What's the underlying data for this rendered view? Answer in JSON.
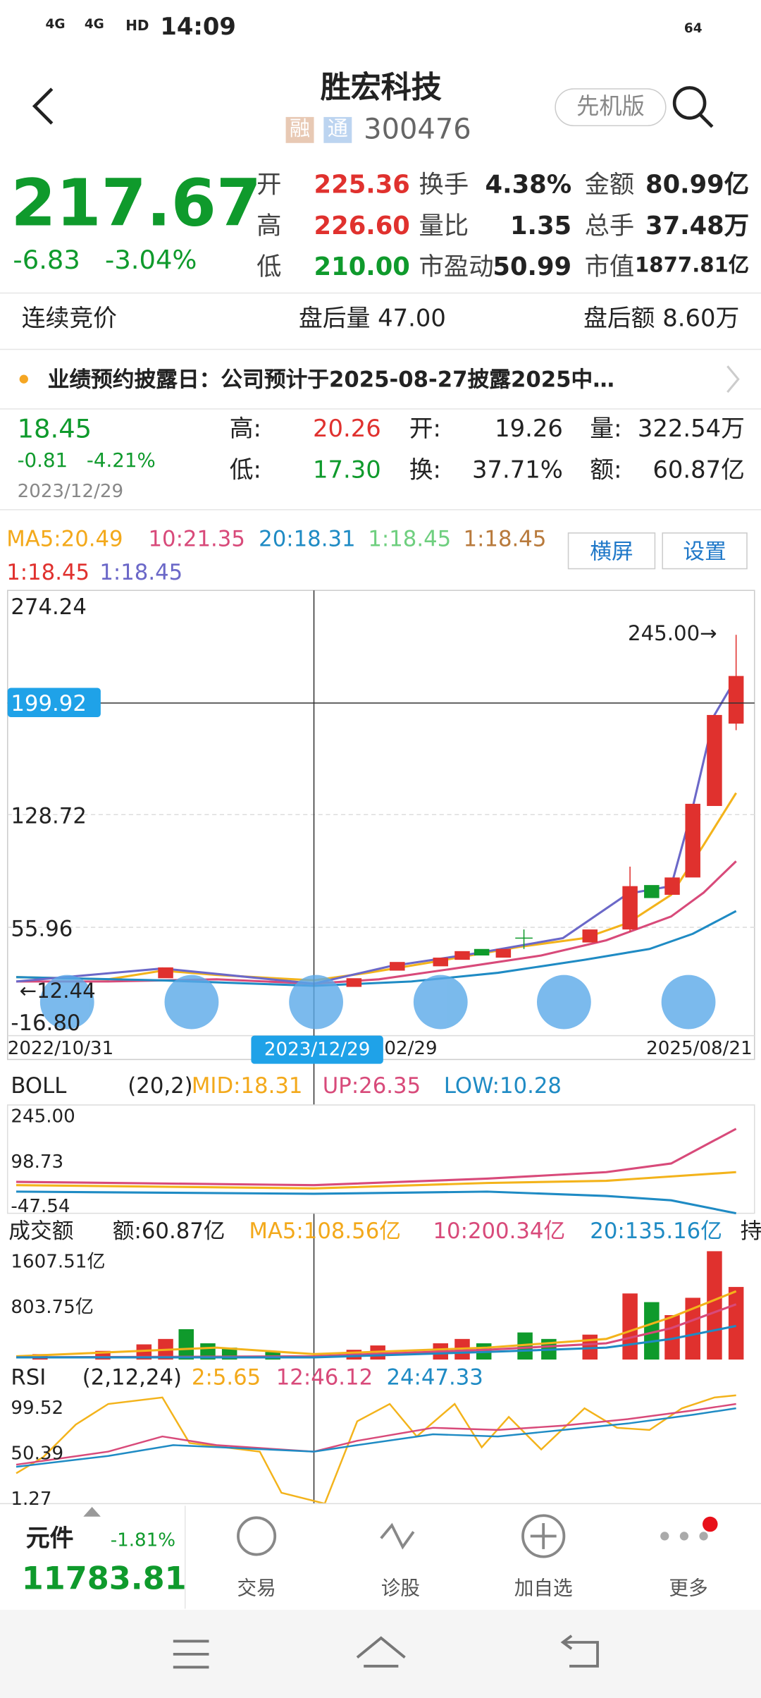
{
  "status": {
    "net1": "4G",
    "net2": "4G",
    "hd": "HD",
    "time": "14:09",
    "battery": "64"
  },
  "header": {
    "title": "胜宏科技",
    "tag1": "融",
    "tag2": "通",
    "code": "300476",
    "mode": "先机版"
  },
  "quote": {
    "price": "217.67",
    "change": "-6.83",
    "pct": "-3.04%",
    "rows": [
      [
        "开",
        "225.36",
        "换手",
        "4.38%",
        "金额",
        "80.99亿"
      ],
      [
        "高",
        "226.60",
        "量比",
        "1.35",
        "总手",
        "37.48万"
      ],
      [
        "低",
        "210.00",
        "市盈动",
        "50.99",
        "市值",
        "1877.81亿"
      ]
    ]
  },
  "after": {
    "state": "连续竞价",
    "vol": "盘后量 47.00",
    "amt": "盘后额 8.60万"
  },
  "notice": "业绩预约披露日：公司预计于2025-08-27披露2025中…",
  "day": {
    "close": "18.45",
    "change": "-0.81",
    "pct": "-4.21%",
    "date": "2023/12/29",
    "rows": [
      [
        "高:",
        "20.26",
        "开:",
        "19.26",
        "量:",
        "322.54万"
      ],
      [
        "低:",
        "17.30",
        "换:",
        "37.71%",
        "额:",
        "60.87亿"
      ]
    ]
  },
  "ma": {
    "items": [
      "MA5:20.49",
      "10:21.35",
      "20:18.31",
      "1:18.45",
      "1:18.45",
      "1:18.45",
      "1:18.45"
    ],
    "landscape": "横屏",
    "settings": "设置"
  },
  "kline": {
    "yticks": [
      "274.24",
      "199.92",
      "128.72",
      "55.96",
      "-16.80"
    ],
    "high_label": "245.00→",
    "low_label": "←12.44",
    "dates": [
      "2022/10/31",
      "2023/12/29",
      "02/29",
      "2025/08/21"
    ]
  },
  "boll": {
    "name": "BOLL",
    "params": "(20,2)",
    "mid": "MID:18.31",
    "up": "UP:26.35",
    "low": "LOW:10.28",
    "yticks": [
      "245.00",
      "98.73",
      "-47.54"
    ]
  },
  "amount": {
    "name": "成交额",
    "cur": "额:60.87亿",
    "ma5": "MA5:108.56亿",
    "ma10": "10:200.34亿",
    "ma20": "20:135.16亿",
    "more": "持",
    "yticks": [
      "1607.51亿",
      "803.75亿"
    ]
  },
  "rsi": {
    "name": "RSI",
    "params": "(2,12,24)",
    "r1": "2:5.65",
    "r2": "12:46.12",
    "r3": "24:47.33",
    "yticks": [
      "99.52",
      "50.39",
      "1.27"
    ]
  },
  "bottom": {
    "index_name": "元件",
    "index_pct": "-1.81%",
    "index_value": "11783.81",
    "tabs": [
      "交易",
      "诊股",
      "加自选",
      "更多"
    ]
  }
}
